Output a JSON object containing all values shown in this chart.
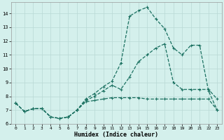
{
  "xlabel": "Humidex (Indice chaleur)",
  "background_color": "#d4f0ec",
  "grid_color": "#b8d8d4",
  "line_color": "#1a7060",
  "xlim": [
    -0.5,
    23.5
  ],
  "ylim": [
    6.0,
    14.8
  ],
  "yticks": [
    6,
    7,
    8,
    9,
    10,
    11,
    12,
    13,
    14
  ],
  "xticks": [
    0,
    1,
    2,
    3,
    4,
    5,
    6,
    7,
    8,
    9,
    10,
    11,
    12,
    13,
    14,
    15,
    16,
    17,
    18,
    19,
    20,
    21,
    22,
    23
  ],
  "lines": [
    {
      "x": [
        0,
        1,
        2,
        3,
        4,
        5,
        6,
        7,
        8,
        9,
        10,
        11,
        12,
        13,
        14,
        15,
        16,
        17,
        18,
        19,
        20,
        21,
        22,
        23
      ],
      "y": [
        7.5,
        6.9,
        7.1,
        7.1,
        6.5,
        6.4,
        6.5,
        7.0,
        7.8,
        8.2,
        8.7,
        9.1,
        10.4,
        13.8,
        14.2,
        14.45,
        13.6,
        12.9,
        11.5,
        11.0,
        11.7,
        11.7,
        8.4,
        7.0
      ]
    },
    {
      "x": [
        0,
        1,
        2,
        3,
        4,
        5,
        6,
        7,
        8,
        9,
        10,
        11,
        12,
        13,
        14,
        15,
        16,
        17,
        18,
        19,
        20,
        21,
        22,
        23
      ],
      "y": [
        7.5,
        6.9,
        7.1,
        7.1,
        6.5,
        6.4,
        6.5,
        7.0,
        7.7,
        8.0,
        8.4,
        8.8,
        8.5,
        9.4,
        10.5,
        11.0,
        11.5,
        11.8,
        9.0,
        8.5,
        8.5,
        8.5,
        8.5,
        7.8
      ]
    },
    {
      "x": [
        0,
        1,
        2,
        3,
        4,
        5,
        6,
        7,
        8,
        9,
        10,
        11,
        12,
        13,
        14,
        15,
        16,
        17,
        18,
        19,
        20,
        21,
        22,
        23
      ],
      "y": [
        7.5,
        6.9,
        7.1,
        7.1,
        6.5,
        6.4,
        6.5,
        7.0,
        7.6,
        7.7,
        7.8,
        7.9,
        7.9,
        7.9,
        7.9,
        7.8,
        7.8,
        7.8,
        7.8,
        7.8,
        7.8,
        7.8,
        7.8,
        7.0
      ]
    }
  ],
  "marker": "+",
  "markersize": 3.5,
  "markeredgewidth": 0.8,
  "linewidth": 0.9,
  "linestyle": "--"
}
